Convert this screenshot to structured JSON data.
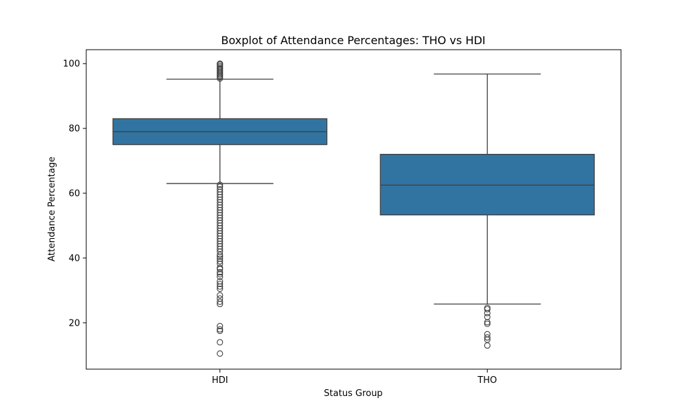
{
  "chart_data": {
    "type": "box",
    "title": "Boxplot of Attendance Percentages: THO vs HDI",
    "xlabel": "Status Group",
    "ylabel": "Attendance Percentage",
    "categories": [
      "HDI",
      "THO"
    ],
    "ylim": [
      5.7,
      104.3
    ],
    "yticks": [
      20,
      40,
      60,
      80,
      100
    ],
    "ytick_labels": [
      "20",
      "40",
      "60",
      "80",
      "100"
    ],
    "grid": false,
    "colors": {
      "box": "#3274a1",
      "line": "#3f3f3f"
    },
    "series": [
      {
        "category": "HDI",
        "q1": 75,
        "median": 79,
        "q3": 83,
        "whisker_low": 63,
        "whisker_high": 95.2,
        "outliers": [
          10.5,
          14,
          17.5,
          18,
          19,
          25.8,
          26.5,
          27.5,
          28.5,
          30.5,
          31.2,
          32,
          32.8,
          34.2,
          35,
          35.6,
          36.6,
          37,
          38.2,
          39,
          39.8,
          40.4,
          41,
          42,
          42.8,
          43.6,
          44.4,
          45.2,
          46,
          46.8,
          47.6,
          48.4,
          49.2,
          50,
          50.8,
          51.6,
          52.4,
          53.2,
          54,
          54.8,
          55.6,
          56.4,
          57.2,
          58,
          58.8,
          59.6,
          60.4,
          61.2,
          62,
          62.6,
          95.4,
          95.8,
          96.2,
          96.6,
          97,
          97.4,
          97.8,
          98.2,
          98.6,
          99,
          99.4,
          99.8,
          100
        ]
      },
      {
        "category": "THO",
        "q1": 53.3,
        "median": 62.5,
        "q3": 72,
        "whisker_low": 25.8,
        "whisker_high": 96.8,
        "outliers": [
          13,
          14.8,
          15.5,
          16.5,
          19.7,
          20.2,
          21.8,
          23,
          24.2,
          24.6
        ]
      }
    ]
  }
}
